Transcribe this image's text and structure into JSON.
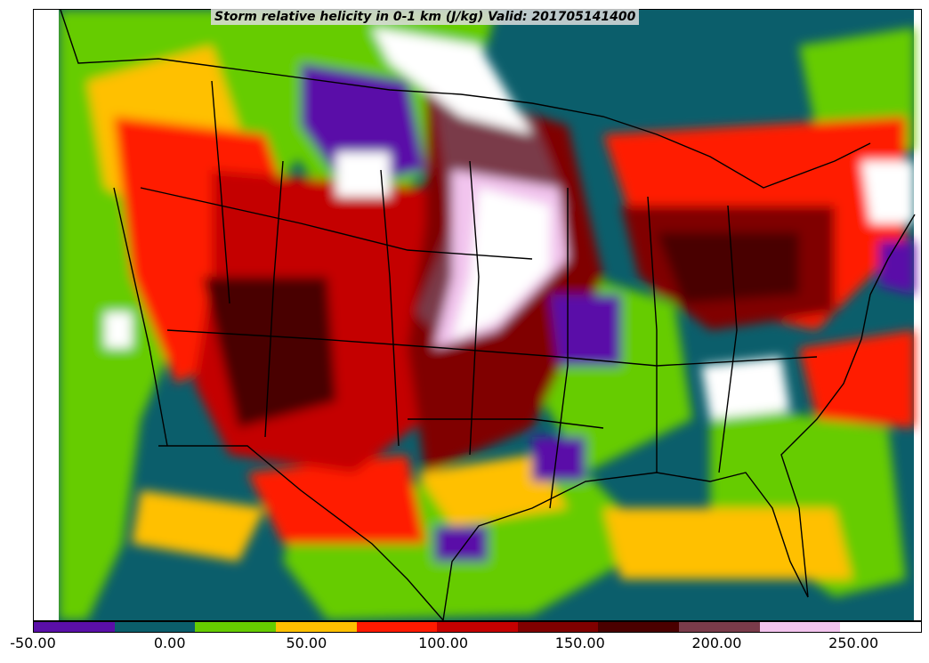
{
  "title": "Storm relative helicity in 0-1 km (J/kg) Valid: 201705141400",
  "colorbar": {
    "colors": [
      "#5a0fa8",
      "#0b5e6b",
      "#66cc00",
      "#ffc000",
      "#ff1a00",
      "#c40000",
      "#800000",
      "#4a0000",
      "#7a3b4a",
      "#f2c4ee",
      "#ffffff"
    ],
    "min": -50,
    "max": 275,
    "ticks": [
      "-50.00",
      "0.00",
      "50.00",
      "100.00",
      "150.00",
      "200.00",
      "250.00"
    ],
    "tick_values": [
      -50,
      0,
      50,
      100,
      150,
      200,
      250
    ]
  }
}
